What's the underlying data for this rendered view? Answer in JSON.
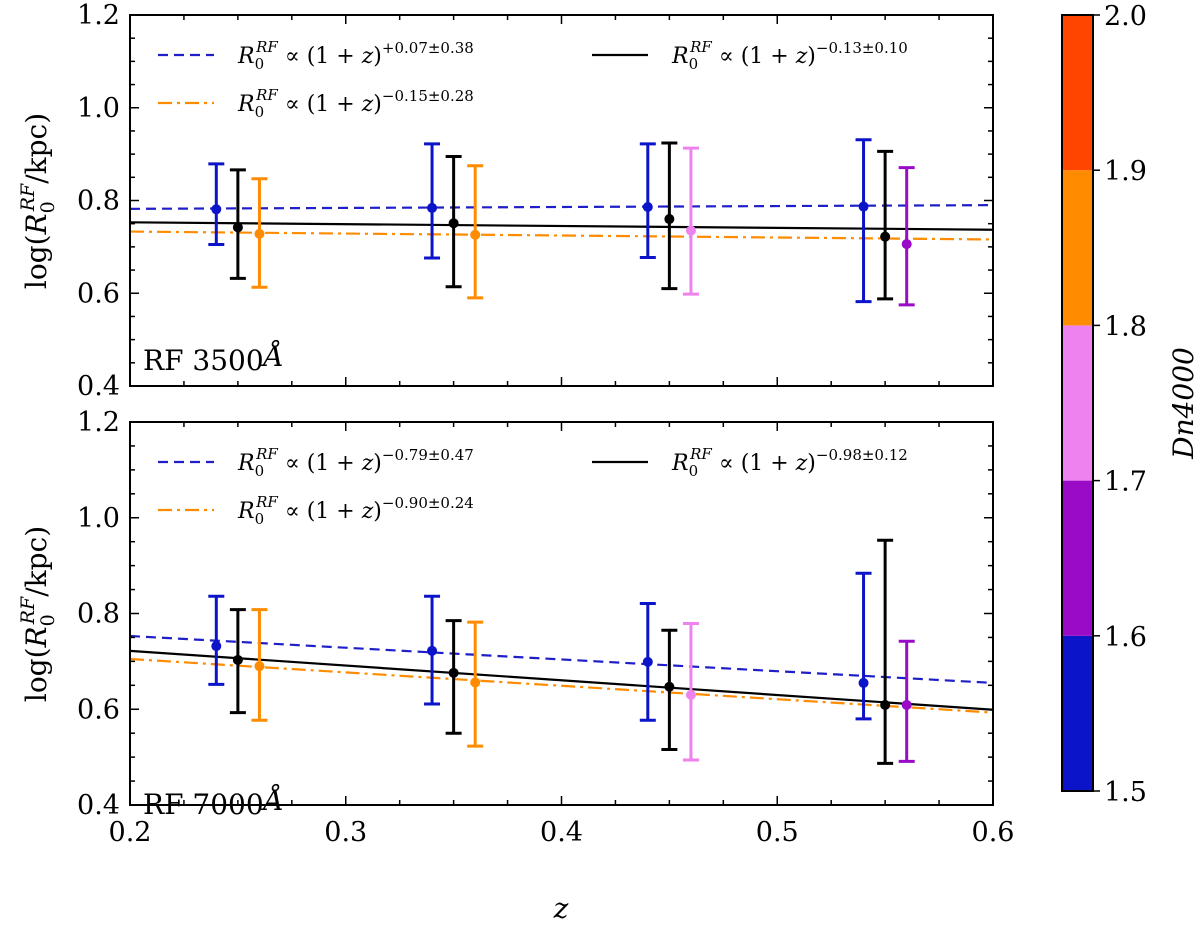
{
  "chart_data": {
    "type": "scatter",
    "xlabel": "z",
    "xlim": [
      0.2,
      0.6
    ],
    "x_ticks": [
      "0.2",
      "0.3",
      "0.4",
      "0.5",
      "0.6"
    ],
    "colorbar": {
      "label": "Dn4000",
      "ticks": [
        "1.5",
        "1.6",
        "1.7",
        "1.8",
        "1.9",
        "2.0"
      ],
      "bins": [
        {
          "from": 1.5,
          "to": 1.6,
          "color": "#0b14c8"
        },
        {
          "from": 1.6,
          "to": 1.7,
          "color": "#9a0bc8"
        },
        {
          "from": 1.7,
          "to": 1.8,
          "color": "#ee82ee"
        },
        {
          "from": 1.8,
          "to": 1.9,
          "color": "#ff8c00"
        },
        {
          "from": 1.9,
          "to": 2.0,
          "color": "#ff4500"
        }
      ]
    },
    "panels": [
      {
        "label": "RF 3500Å",
        "label_main": "RF 3500",
        "label_unit": "Å",
        "ylabel": "log(R0RF/kpc)",
        "ylim": [
          0.4,
          1.2
        ],
        "y_ticks": [
          "0.4",
          "0.6",
          "0.8",
          "1.0",
          "1.2"
        ],
        "fits": [
          {
            "name": "R0RF ∝ (1+z)^(+0.07±0.38)",
            "prefix": "R",
            "sub": "0",
            "sup": "RF",
            "mid": " ∝ (1 + ",
            "zvar": "z",
            "close": ")",
            "exponent": "+0.07±0.38",
            "color": "#1f1fc8",
            "dash": "10,6",
            "y_at_xmin": 0.782,
            "y_at_xmax": 0.79
          },
          {
            "name": "R0RF ∝ (1+z)^(−0.13±0.10)",
            "prefix": "R",
            "sub": "0",
            "sup": "RF",
            "mid": " ∝ (1 + ",
            "zvar": "z",
            "close": ")",
            "exponent": "−0.13±0.10",
            "color": "#000000",
            "dash": "",
            "y_at_xmin": 0.753,
            "y_at_xmax": 0.737
          },
          {
            "name": "R0RF ∝ (1+z)^(−0.15±0.28)",
            "prefix": "R",
            "sub": "0",
            "sup": "RF",
            "mid": " ∝ (1 + ",
            "zvar": "z",
            "close": ")",
            "exponent": "−0.15±0.28",
            "color": "#ff8c00",
            "dash": "14,5,3,5",
            "y_at_xmin": 0.733,
            "y_at_xmax": 0.716
          }
        ],
        "points": [
          {
            "z": 0.24,
            "y": 0.781,
            "lo": 0.705,
            "hi": 0.879,
            "color": "#0b14c8"
          },
          {
            "z": 0.25,
            "y": 0.742,
            "lo": 0.632,
            "hi": 0.866,
            "color": "#000000"
          },
          {
            "z": 0.26,
            "y": 0.728,
            "lo": 0.613,
            "hi": 0.847,
            "color": "#ff8c00"
          },
          {
            "z": 0.34,
            "y": 0.784,
            "lo": 0.676,
            "hi": 0.922,
            "color": "#0b14c8"
          },
          {
            "z": 0.35,
            "y": 0.751,
            "lo": 0.614,
            "hi": 0.895,
            "color": "#000000"
          },
          {
            "z": 0.36,
            "y": 0.726,
            "lo": 0.59,
            "hi": 0.875,
            "color": "#ff8c00"
          },
          {
            "z": 0.44,
            "y": 0.786,
            "lo": 0.677,
            "hi": 0.922,
            "color": "#0b14c8"
          },
          {
            "z": 0.45,
            "y": 0.76,
            "lo": 0.61,
            "hi": 0.924,
            "color": "#000000"
          },
          {
            "z": 0.46,
            "y": 0.735,
            "lo": 0.598,
            "hi": 0.913,
            "color": "#ee82ee"
          },
          {
            "z": 0.54,
            "y": 0.787,
            "lo": 0.582,
            "hi": 0.931,
            "color": "#0b14c8"
          },
          {
            "z": 0.55,
            "y": 0.722,
            "lo": 0.588,
            "hi": 0.906,
            "color": "#000000"
          },
          {
            "z": 0.56,
            "y": 0.706,
            "lo": 0.575,
            "hi": 0.871,
            "color": "#9a0bc8"
          }
        ]
      },
      {
        "label": "RF 7000Å",
        "label_main": "RF 7000",
        "label_unit": "Å",
        "ylabel": "log(R0RF/kpc)",
        "ylim": [
          0.4,
          1.2
        ],
        "y_ticks": [
          "0.4",
          "0.6",
          "0.8",
          "1.0",
          "1.2"
        ],
        "fits": [
          {
            "name": "R0RF ∝ (1+z)^(−0.79±0.47)",
            "prefix": "R",
            "sub": "0",
            "sup": "RF",
            "mid": " ∝ (1 + ",
            "zvar": "z",
            "close": ")",
            "exponent": "−0.79±0.47",
            "color": "#1f1fc8",
            "dash": "10,6",
            "y_at_xmin": 0.753,
            "y_at_xmax": 0.655
          },
          {
            "name": "R0RF ∝ (1+z)^(−0.98±0.12)",
            "prefix": "R",
            "sub": "0",
            "sup": "RF",
            "mid": " ∝ (1 + ",
            "zvar": "z",
            "close": ")",
            "exponent": "−0.98±0.12",
            "color": "#000000",
            "dash": "",
            "y_at_xmin": 0.722,
            "y_at_xmax": 0.599
          },
          {
            "name": "R0RF ∝ (1+z)^(−0.90±0.24)",
            "prefix": "R",
            "sub": "0",
            "sup": "RF",
            "mid": " ∝ (1 + ",
            "zvar": "z",
            "close": ")",
            "exponent": "−0.90±0.24",
            "color": "#ff8c00",
            "dash": "14,5,3,5",
            "y_at_xmin": 0.705,
            "y_at_xmax": 0.593
          }
        ],
        "points": [
          {
            "z": 0.24,
            "y": 0.732,
            "lo": 0.652,
            "hi": 0.836,
            "color": "#0b14c8"
          },
          {
            "z": 0.25,
            "y": 0.703,
            "lo": 0.593,
            "hi": 0.808,
            "color": "#000000"
          },
          {
            "z": 0.26,
            "y": 0.69,
            "lo": 0.577,
            "hi": 0.808,
            "color": "#ff8c00"
          },
          {
            "z": 0.34,
            "y": 0.722,
            "lo": 0.611,
            "hi": 0.836,
            "color": "#0b14c8"
          },
          {
            "z": 0.35,
            "y": 0.676,
            "lo": 0.55,
            "hi": 0.785,
            "color": "#000000"
          },
          {
            "z": 0.36,
            "y": 0.656,
            "lo": 0.523,
            "hi": 0.782,
            "color": "#ff8c00"
          },
          {
            "z": 0.44,
            "y": 0.699,
            "lo": 0.577,
            "hi": 0.821,
            "color": "#0b14c8"
          },
          {
            "z": 0.45,
            "y": 0.647,
            "lo": 0.516,
            "hi": 0.765,
            "color": "#000000"
          },
          {
            "z": 0.46,
            "y": 0.63,
            "lo": 0.494,
            "hi": 0.779,
            "color": "#ee82ee"
          },
          {
            "z": 0.54,
            "y": 0.655,
            "lo": 0.58,
            "hi": 0.884,
            "color": "#0b14c8"
          },
          {
            "z": 0.55,
            "y": 0.609,
            "lo": 0.487,
            "hi": 0.953,
            "color": "#000000"
          },
          {
            "z": 0.56,
            "y": 0.609,
            "lo": 0.491,
            "hi": 0.742,
            "color": "#9a0bc8"
          }
        ]
      }
    ]
  }
}
